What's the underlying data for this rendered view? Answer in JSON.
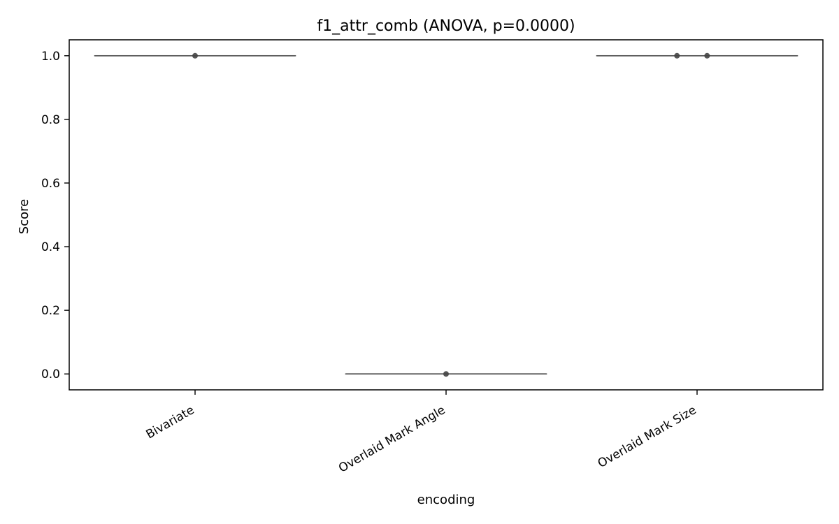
{
  "chart_data": {
    "type": "box",
    "title": "f1_attr_comb (ANOVA, p=0.0000)",
    "xlabel": "encoding",
    "ylabel": "Score",
    "categories": [
      "Bivariate",
      "Overlaid Mark Angle",
      "Overlaid Mark Size"
    ],
    "ylim": [
      -0.05,
      1.05
    ],
    "yticks": [
      0.0,
      0.2,
      0.4,
      0.6,
      0.8,
      1.0
    ],
    "ytick_labels": [
      "0.0",
      "0.2",
      "0.4",
      "0.6",
      "0.8",
      "1.0"
    ],
    "grid": false,
    "legend": "none",
    "boxes": [
      {
        "category": "Bivariate",
        "median": 1.0,
        "q1": 1.0,
        "q3": 1.0,
        "whisker_low": 1.0,
        "whisker_high": 1.0
      },
      {
        "category": "Overlaid Mark Angle",
        "median": 0.0,
        "q1": 0.0,
        "q3": 0.0,
        "whisker_low": 0.0,
        "whisker_high": 0.0
      },
      {
        "category": "Overlaid Mark Size",
        "median": 1.0,
        "q1": 1.0,
        "q3": 1.0,
        "whisker_low": 1.0,
        "whisker_high": 1.0
      }
    ],
    "points": [
      {
        "category": "Bivariate",
        "jitter": 0.0,
        "y": 1.0
      },
      {
        "category": "Overlaid Mark Angle",
        "jitter": 0.0,
        "y": 0.0
      },
      {
        "category": "Overlaid Mark Size",
        "jitter": -0.08,
        "y": 1.0
      },
      {
        "category": "Overlaid Mark Size",
        "jitter": 0.04,
        "y": 1.0
      }
    ],
    "colors": {
      "box_line": "#555555",
      "point": "#444444",
      "axis": "#000000"
    }
  }
}
